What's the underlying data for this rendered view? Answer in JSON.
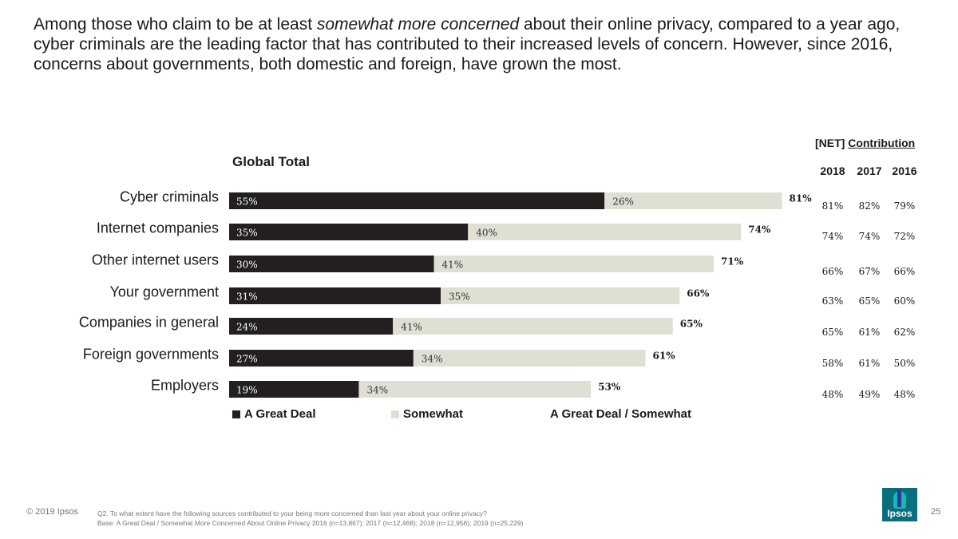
{
  "headline": {
    "part1": "Among those who claim to be at least ",
    "italic": "somewhat more concerned",
    "part2": " about their online privacy, compared to a year ago, cyber criminals are the leading factor that has contributed to their increased levels of concern. However, since 2016, concerns about governments, both domestic and foreign, have grown the most."
  },
  "net_header": {
    "prefix": "[NET]",
    "underlined": "Contribution"
  },
  "colors": {
    "great_deal": "#231f20",
    "somewhat": "#e0dfd4"
  },
  "chart_data": {
    "type": "bar",
    "orientation": "horizontal",
    "stacked": true,
    "title": "Global Total",
    "categories": [
      "Cyber criminals",
      "Internet companies",
      "Other internet users",
      "Your government",
      "Companies in general",
      "Foreign governments",
      "Employers"
    ],
    "series": [
      {
        "name": "A Great Deal",
        "values": [
          55,
          35,
          30,
          31,
          24,
          27,
          19
        ],
        "labels": [
          "55%",
          "35%",
          "30%",
          "31%",
          "24%",
          "27%",
          "19%"
        ]
      },
      {
        "name": "Somewhat",
        "values": [
          26,
          40,
          41,
          35,
          41,
          34,
          34
        ],
        "labels": [
          "26%",
          "40%",
          "41%",
          "35%",
          "41%",
          "34%",
          "34%"
        ]
      }
    ],
    "totals": {
      "name": "A Great Deal / Somewhat",
      "values": [
        81,
        74,
        71,
        66,
        65,
        61,
        53
      ],
      "labels": [
        "81%",
        "74%",
        "71%",
        "66%",
        "65%",
        "61%",
        "53%"
      ]
    },
    "xlim": [
      0,
      100
    ]
  },
  "net_table": {
    "years": [
      "2018",
      "2017",
      "2016"
    ],
    "rows": [
      [
        "81%",
        "82%",
        "79%"
      ],
      [
        "74%",
        "74%",
        "72%"
      ],
      [
        "66%",
        "67%",
        "66%"
      ],
      [
        "63%",
        "65%",
        "60%"
      ],
      [
        "65%",
        "61%",
        "62%"
      ],
      [
        "58%",
        "61%",
        "50%"
      ],
      [
        "48%",
        "49%",
        "48%"
      ]
    ]
  },
  "footer": {
    "copyright": "© 2019 Ipsos",
    "question": "Q2. To what extent have the following sources contributed to your being more concerned than last year about your online privacy?",
    "base": "Base: A Great Deal / Somewhat More Concerned About Online Privacy 2016 (n=13,867); 2017 (n=12,468); 2018 (n=12,956); 2019 (n=25,229)",
    "page_number": "25",
    "logo_text": "Ipsos"
  }
}
